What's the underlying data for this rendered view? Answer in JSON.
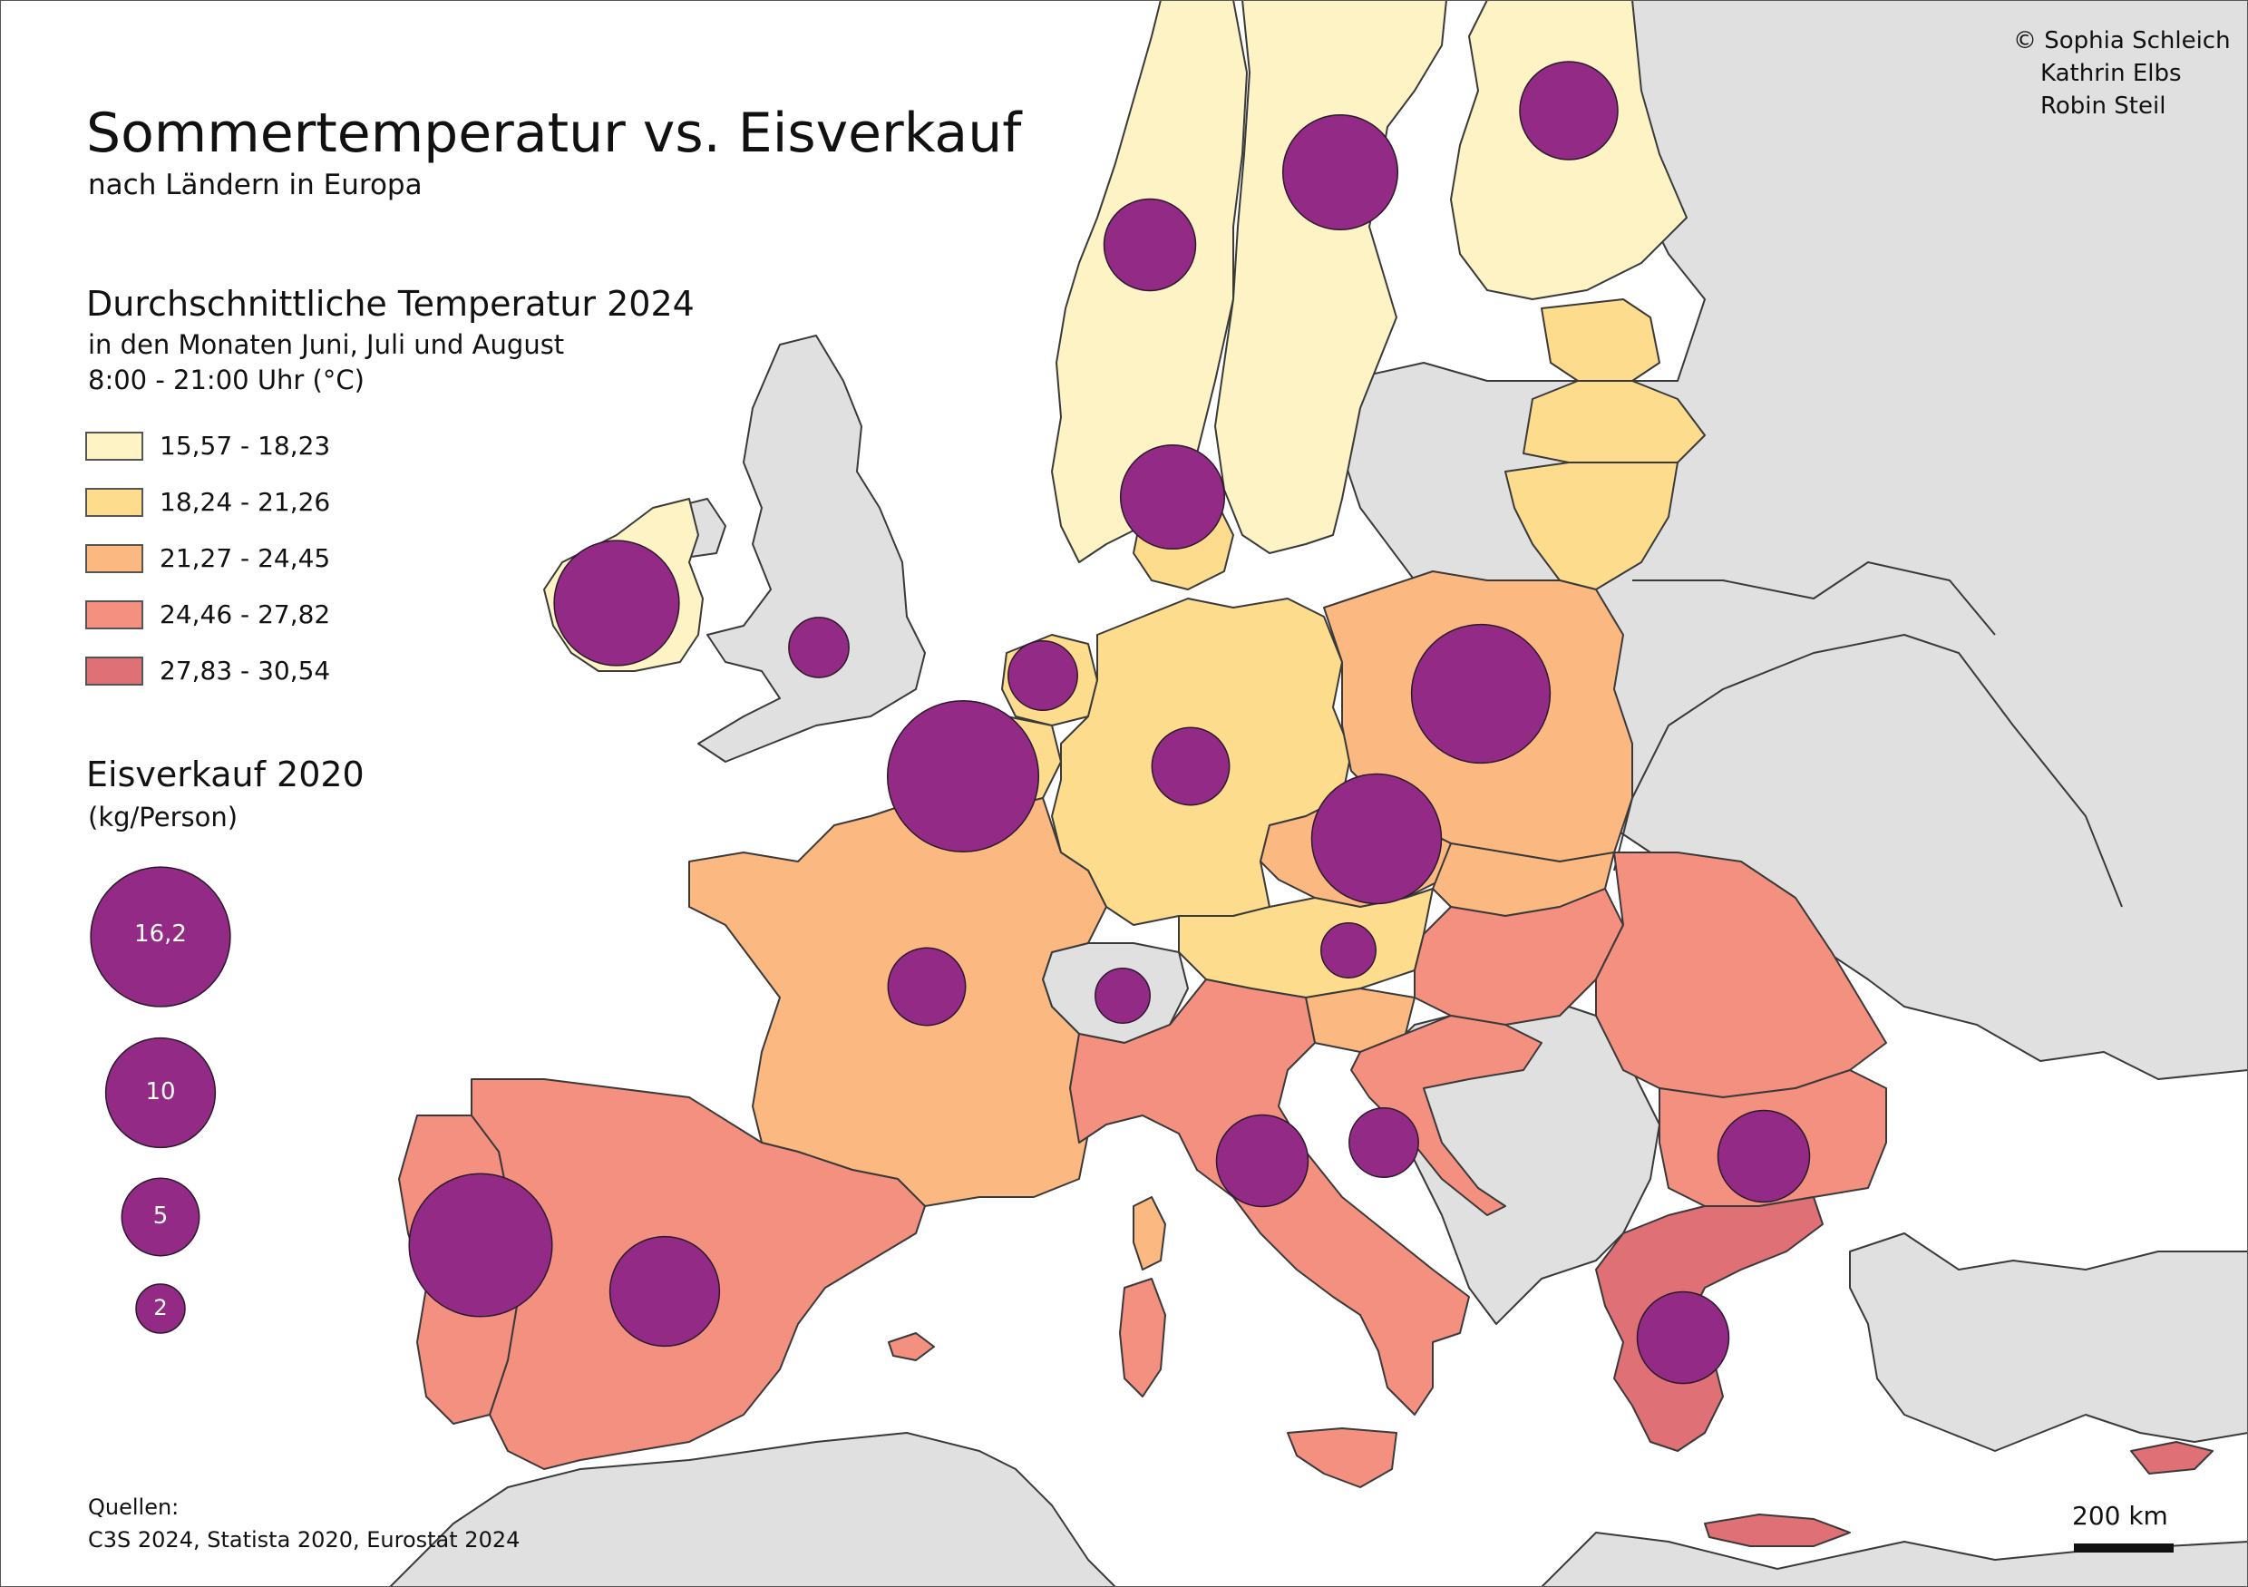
{
  "title": "Sommertemperatur vs. Eisverkauf",
  "subtitle": "nach Ländern in Europa",
  "credits": {
    "line1": "©  Sophia Schleich",
    "line2": "Kathrin Elbs",
    "line3": "Robin Steil"
  },
  "temperature_legend": {
    "title": "Durchschnittliche Temperatur 2024",
    "sub1": "in den Monaten Juni, Juli und August",
    "sub2": "8:00 - 21:00 Uhr (°C)",
    "classes": [
      {
        "label": "15,57 - 18,23",
        "color": "#fdf3c4"
      },
      {
        "label": "18,24 - 21,26",
        "color": "#fddc8e"
      },
      {
        "label": "21,27 - 24,45",
        "color": "#fcb881"
      },
      {
        "label": "24,46 - 27,82",
        "color": "#f4907f"
      },
      {
        "label": "27,83 - 30,54",
        "color": "#df7075"
      }
    ]
  },
  "ice_legend": {
    "title": "Eisverkauf 2020",
    "sub": "(kg/Person)",
    "values": [
      "16,2",
      "10",
      "5",
      "2"
    ],
    "color": "#922a86"
  },
  "sources": {
    "label": "Quellen:",
    "text": "C3S 2024, Statista 2020, Eurostat 2024"
  },
  "scalebar": {
    "label": "200 km"
  },
  "colors": {
    "no_data": "#e0e0e0",
    "sea": "#ffffff",
    "border": "#3a3a3a"
  },
  "chart_data": {
    "type": "proportional-symbol-choropleth",
    "symbols": [
      {
        "id": "ireland",
        "value": 13
      },
      {
        "id": "uk",
        "value": 3
      },
      {
        "id": "norway",
        "value": 7
      },
      {
        "id": "sweden",
        "value": 11
      },
      {
        "id": "finland",
        "value": 8
      },
      {
        "id": "denmark",
        "value": 9
      },
      {
        "id": "netherlands",
        "value": 4
      },
      {
        "id": "belgium",
        "value": 19
      },
      {
        "id": "germany",
        "value": 5
      },
      {
        "id": "poland",
        "value": 16
      },
      {
        "id": "czechia",
        "value": 14
      },
      {
        "id": "austria",
        "value": 2.5
      },
      {
        "id": "switzerland",
        "value": 2.5
      },
      {
        "id": "france",
        "value": 5
      },
      {
        "id": "italy",
        "value": 7
      },
      {
        "id": "croatia",
        "value": 4
      },
      {
        "id": "bulgaria",
        "value": 7
      },
      {
        "id": "greece",
        "value": 7
      },
      {
        "id": "portugal",
        "value": 17
      },
      {
        "id": "spain",
        "value": 10
      }
    ]
  }
}
